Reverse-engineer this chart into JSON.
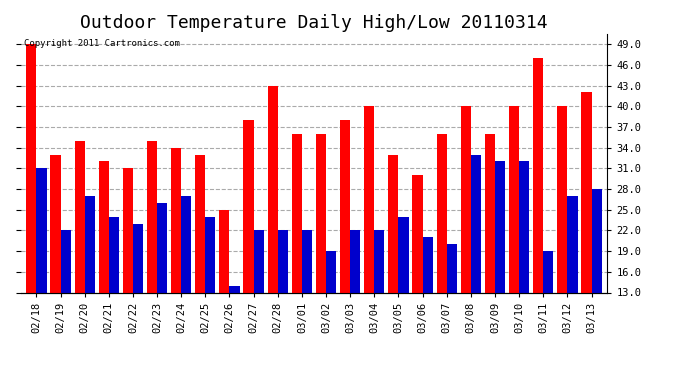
{
  "title": "Outdoor Temperature Daily High/Low 20110314",
  "copyright": "Copyright 2011 Cartronics.com",
  "dates": [
    "02/18",
    "02/19",
    "02/20",
    "02/21",
    "02/22",
    "02/23",
    "02/24",
    "02/25",
    "02/26",
    "02/27",
    "02/28",
    "03/01",
    "03/02",
    "03/03",
    "03/04",
    "03/05",
    "03/06",
    "03/07",
    "03/08",
    "03/09",
    "03/10",
    "03/11",
    "03/12",
    "03/13"
  ],
  "highs": [
    49.0,
    33.0,
    35.0,
    32.0,
    31.0,
    35.0,
    34.0,
    33.0,
    25.0,
    38.0,
    43.0,
    36.0,
    36.0,
    38.0,
    40.0,
    33.0,
    30.0,
    36.0,
    40.0,
    36.0,
    40.0,
    47.0,
    40.0,
    42.0
  ],
  "lows": [
    31.0,
    22.0,
    27.0,
    24.0,
    23.0,
    26.0,
    27.0,
    24.0,
    14.0,
    22.0,
    22.0,
    22.0,
    19.0,
    22.0,
    22.0,
    24.0,
    21.0,
    20.0,
    33.0,
    32.0,
    32.0,
    19.0,
    27.0,
    28.0
  ],
  "high_color": "#ff0000",
  "low_color": "#0000cc",
  "bg_color": "#ffffff",
  "plot_bg_color": "#ffffff",
  "grid_color": "#aaaaaa",
  "ylim": [
    13.0,
    50.5
  ],
  "yticks": [
    13.0,
    16.0,
    19.0,
    22.0,
    25.0,
    28.0,
    31.0,
    34.0,
    37.0,
    40.0,
    43.0,
    46.0,
    49.0
  ],
  "title_fontsize": 13,
  "tick_fontsize": 7.5,
  "bar_width": 0.42
}
